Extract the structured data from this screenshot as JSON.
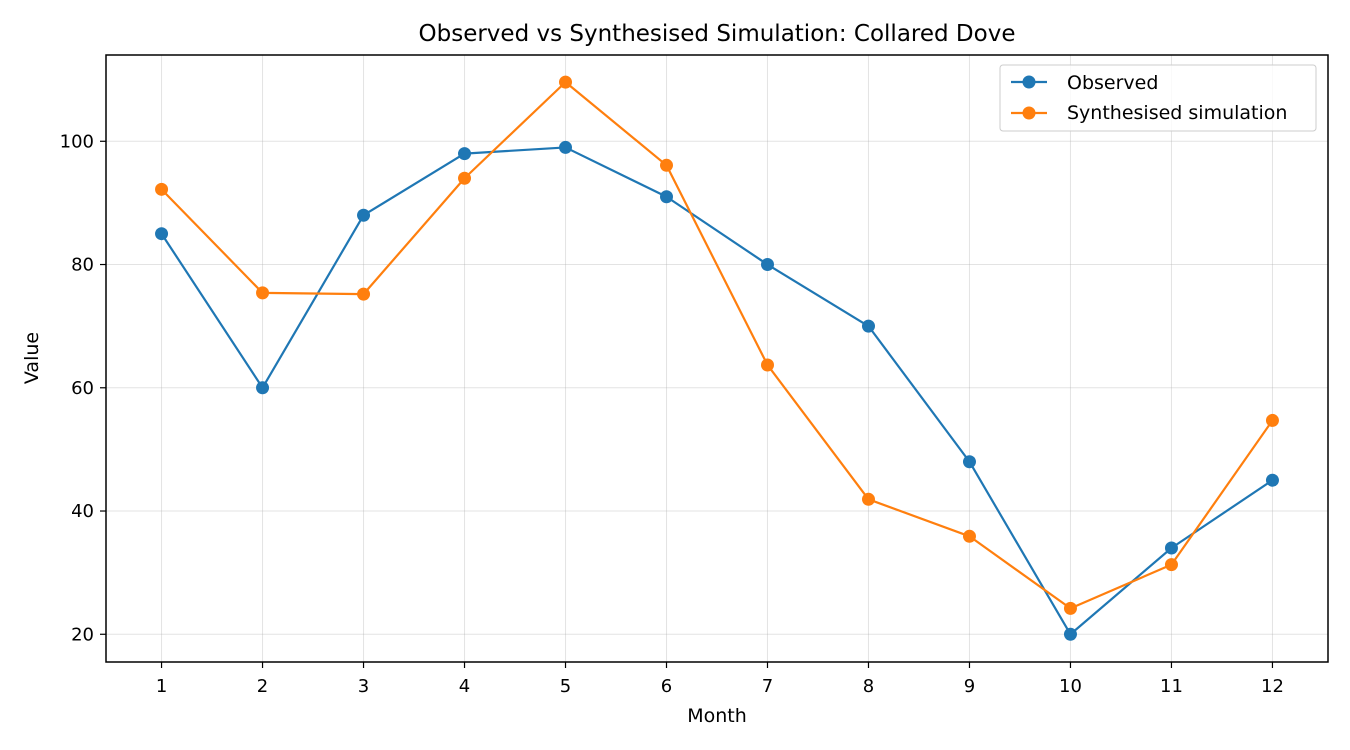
{
  "chart_data": {
    "type": "line",
    "title": "Observed vs Synthesised Simulation: Collared Dove",
    "xlabel": "Month",
    "ylabel": "Value",
    "x": [
      1,
      2,
      3,
      4,
      5,
      6,
      7,
      8,
      9,
      10,
      11,
      12
    ],
    "xticks": [
      "1",
      "2",
      "3",
      "4",
      "5",
      "6",
      "7",
      "8",
      "9",
      "10",
      "11",
      "12"
    ],
    "yticks": [
      20,
      40,
      60,
      80,
      100
    ],
    "xlim": [
      0.45,
      12.55
    ],
    "ylim": [
      15.5,
      114.0
    ],
    "grid": true,
    "legend_position": "top-right",
    "series": [
      {
        "name": "Observed",
        "color": "#1f77b4",
        "marker": "circle",
        "values": [
          85,
          60,
          88,
          98,
          99,
          91,
          80,
          70,
          48,
          20,
          34,
          45
        ]
      },
      {
        "name": "Synthesised simulation",
        "color": "#ff7f0e",
        "marker": "circle",
        "values": [
          92.2,
          75.4,
          75.2,
          94,
          109.6,
          96.1,
          63.7,
          41.9,
          35.9,
          24.2,
          31.3,
          54.7
        ]
      }
    ]
  }
}
